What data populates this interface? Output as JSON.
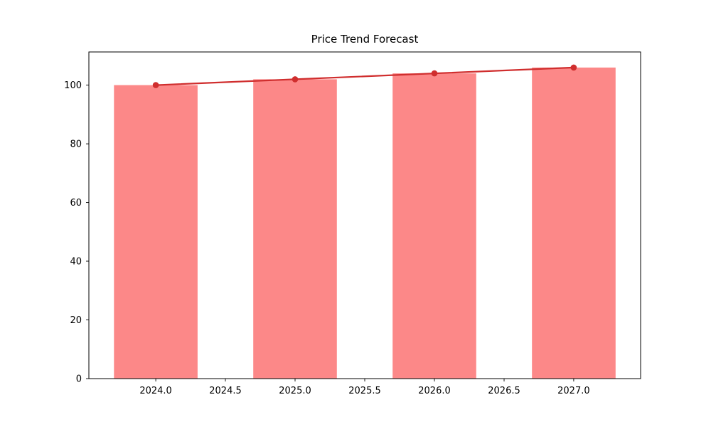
{
  "figure": {
    "background": "#ffffff"
  },
  "chart_data": {
    "type": "bar",
    "title": "Price Trend Forecast",
    "xlabel": "",
    "ylabel": "",
    "x": [
      2024,
      2025,
      2026,
      2027
    ],
    "series": [
      {
        "name": "price-bars",
        "type": "bar",
        "values": [
          100,
          102,
          104,
          106
        ],
        "color": "#fc8888"
      },
      {
        "name": "trend-line",
        "type": "line",
        "values": [
          100,
          102,
          104,
          106
        ],
        "color": "#d02e2e",
        "marker": "circle"
      }
    ],
    "bar_width": 0.6,
    "xlim": [
      2023.52,
      2027.48
    ],
    "ylim": [
      0,
      111.3
    ],
    "x_tick_values": [
      2024.0,
      2024.5,
      2025.0,
      2025.5,
      2026.0,
      2026.5,
      2027.0
    ],
    "x_tick_labels": [
      "2024.0",
      "2024.5",
      "2025.0",
      "2025.5",
      "2026.0",
      "2026.5",
      "2027.0"
    ],
    "y_tick_values": [
      0,
      20,
      40,
      60,
      80,
      100
    ],
    "y_tick_labels": [
      "0",
      "20",
      "40",
      "60",
      "80",
      "100"
    ],
    "grid": false,
    "legend": null,
    "frame_color": "#000000"
  }
}
